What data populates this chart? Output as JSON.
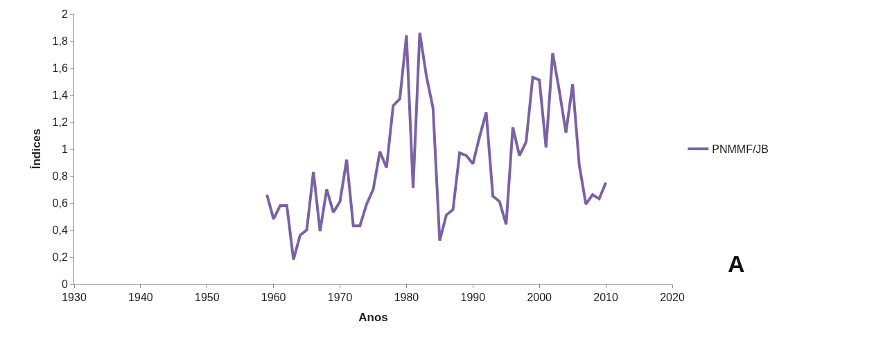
{
  "chart_data": {
    "type": "line",
    "xlabel": "Anos",
    "ylabel": "Índices",
    "annotations": [
      "A"
    ],
    "x": [
      1959,
      1960,
      1961,
      1962,
      1963,
      1964,
      1965,
      1966,
      1967,
      1968,
      1969,
      1970,
      1971,
      1972,
      1973,
      1974,
      1975,
      1976,
      1977,
      1978,
      1979,
      1980,
      1981,
      1982,
      1983,
      1984,
      1985,
      1986,
      1987,
      1988,
      1989,
      1990,
      1991,
      1992,
      1993,
      1994,
      1995,
      1996,
      1997,
      1998,
      1999,
      2000,
      2001,
      2002,
      2003,
      2004,
      2005,
      2006,
      2007,
      2008,
      2009,
      2010
    ],
    "series": [
      {
        "name": "PNMMF/JB",
        "color": "#7b62a4",
        "values": [
          0.66,
          0.48,
          0.58,
          0.58,
          0.18,
          0.36,
          0.4,
          0.83,
          0.39,
          0.7,
          0.53,
          0.61,
          0.92,
          0.43,
          0.43,
          0.59,
          0.7,
          0.98,
          0.86,
          1.32,
          1.37,
          1.84,
          0.71,
          1.86,
          1.54,
          1.3,
          0.32,
          0.51,
          0.55,
          0.97,
          0.95,
          0.89,
          1.09,
          1.27,
          0.65,
          0.61,
          0.44,
          1.16,
          0.95,
          1.05,
          1.53,
          1.51,
          1.01,
          1.71,
          1.43,
          1.12,
          1.48,
          0.88,
          0.59,
          0.66,
          0.63,
          0.75
        ]
      }
    ],
    "xlim": [
      1930,
      2020
    ],
    "xticks": [
      1930,
      1940,
      1950,
      1960,
      1970,
      1980,
      1990,
      2000,
      2010,
      2020
    ],
    "ylim": [
      0,
      2
    ],
    "yticks": [
      0,
      {
        "value": 0.2,
        "label": "0,2"
      },
      {
        "value": 0.4,
        "label": "0,4"
      },
      {
        "value": 0.6,
        "label": "0,6"
      },
      {
        "value": 0.8,
        "label": "0,8"
      },
      1,
      {
        "value": 1.2,
        "label": "1,2"
      },
      {
        "value": 1.4,
        "label": "1,4"
      },
      {
        "value": 1.6,
        "label": "1,6"
      },
      {
        "value": 1.8,
        "label": "1,8"
      },
      2
    ],
    "grid": false,
    "legend": "right",
    "marker": "none",
    "line_style": "solid"
  }
}
